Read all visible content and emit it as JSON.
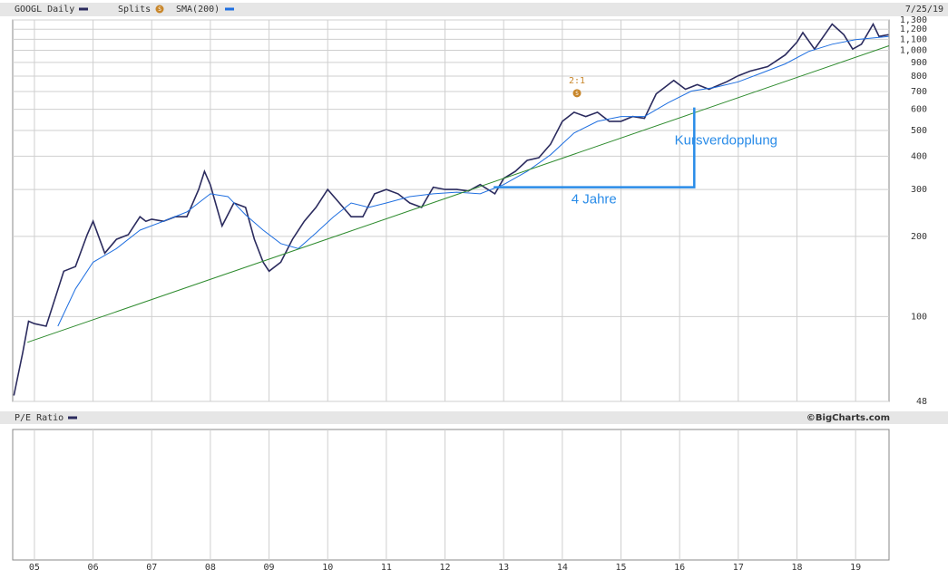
{
  "chart_data": [
    {
      "type": "line",
      "log_scale": true,
      "grid": true,
      "date": "7/25/19",
      "credit": "©BigCharts.com",
      "splits_label": "Splits",
      "split_icon": "S",
      "xlim": [
        2004.63,
        2019.57
      ],
      "xticks": [
        {
          "value": 2005,
          "label": "05"
        },
        {
          "value": 2006,
          "label": "06"
        },
        {
          "value": 2007,
          "label": "07"
        },
        {
          "value": 2008,
          "label": "08"
        },
        {
          "value": 2009,
          "label": "09"
        },
        {
          "value": 2010,
          "label": "10"
        },
        {
          "value": 2011,
          "label": "11"
        },
        {
          "value": 2012,
          "label": "12"
        },
        {
          "value": 2013,
          "label": "13"
        },
        {
          "value": 2014,
          "label": "14"
        },
        {
          "value": 2015,
          "label": "15"
        },
        {
          "value": 2016,
          "label": "16"
        },
        {
          "value": 2017,
          "label": "17"
        },
        {
          "value": 2018,
          "label": "18"
        },
        {
          "value": 2019,
          "label": "19"
        }
      ],
      "ylim": [
        48,
        1300
      ],
      "yticks": [
        {
          "value": 1300,
          "label": "1,300"
        },
        {
          "value": 1200,
          "label": "1,200"
        },
        {
          "value": 1100,
          "label": "1,100"
        },
        {
          "value": 1000,
          "label": "1,000"
        },
        900,
        800,
        700,
        600,
        500,
        400,
        300,
        200,
        100,
        48
      ],
      "series": [
        {
          "name": "GOOGL Daily",
          "color": "#2b2b5e",
          "x": [
            2004.65,
            2004.8,
            2004.9,
            2005.0,
            2005.2,
            2005.5,
            2005.7,
            2005.9,
            2006.0,
            2006.2,
            2006.4,
            2006.6,
            2006.8,
            2006.9,
            2007.0,
            2007.2,
            2007.4,
            2007.6,
            2007.8,
            2007.9,
            2008.0,
            2008.2,
            2008.4,
            2008.6,
            2008.75,
            2008.9,
            2009.0,
            2009.2,
            2009.4,
            2009.6,
            2009.8,
            2010.0,
            2010.2,
            2010.4,
            2010.6,
            2010.8,
            2011.0,
            2011.2,
            2011.4,
            2011.6,
            2011.8,
            2012.0,
            2012.2,
            2012.4,
            2012.6,
            2012.85,
            2013.0,
            2013.2,
            2013.4,
            2013.6,
            2013.8,
            2014.0,
            2014.2,
            2014.4,
            2014.6,
            2014.8,
            2015.0,
            2015.2,
            2015.4,
            2015.6,
            2015.9,
            2016.1,
            2016.3,
            2016.5,
            2016.8,
            2017.0,
            2017.2,
            2017.5,
            2017.8,
            2018.0,
            2018.1,
            2018.3,
            2018.6,
            2018.8,
            2018.95,
            2019.1,
            2019.3,
            2019.4,
            2019.56
          ],
          "values": [
            50.5,
            73,
            96,
            94,
            92,
            148,
            154,
            203,
            228,
            173,
            195,
            203,
            237,
            228,
            232,
            228,
            237,
            237,
            300,
            351,
            312,
            219,
            267,
            257,
            195,
            160,
            148,
            160,
            195,
            228,
            257,
            300,
            267,
            237,
            237,
            289,
            300,
            289,
            267,
            257,
            306,
            300,
            300,
            296,
            313,
            289,
            330,
            351,
            386,
            395,
            444,
            541,
            585,
            564,
            585,
            541,
            541,
            564,
            555,
            686,
            770,
            714,
            743,
            714,
            761,
            802,
            835,
            868,
            961,
            1073,
            1165,
            1010,
            1254,
            1144,
            1010,
            1054,
            1254,
            1127,
            1144
          ]
        },
        {
          "name": "SMA(200)",
          "color": "#1f6fe0",
          "x": [
            2005.4,
            2005.7,
            2006.0,
            2006.4,
            2006.8,
            2007.2,
            2007.6,
            2008.0,
            2008.3,
            2008.6,
            2008.9,
            2009.2,
            2009.5,
            2009.8,
            2010.1,
            2010.4,
            2010.7,
            2011.0,
            2011.4,
            2011.8,
            2012.2,
            2012.6,
            2013.0,
            2013.4,
            2013.8,
            2014.2,
            2014.6,
            2015.0,
            2015.4,
            2015.8,
            2016.2,
            2016.6,
            2017.0,
            2017.4,
            2017.8,
            2018.2,
            2018.6,
            2019.0,
            2019.56
          ],
          "values": [
            92,
            127,
            160,
            180,
            211,
            228,
            247,
            289,
            282,
            241,
            211,
            188,
            180,
            206,
            237,
            267,
            257,
            267,
            282,
            289,
            293,
            289,
            313,
            351,
            405,
            489,
            541,
            564,
            564,
            634,
            703,
            725,
            761,
            822,
            889,
            990,
            1054,
            1096,
            1127
          ]
        },
        {
          "color": "#2e8b2e",
          "x": [
            2004.88,
            2019.57
          ],
          "values": [
            80,
            1040
          ]
        }
      ],
      "splits": [
        {
          "x": 2014.25,
          "value": 690,
          "label": "2:1"
        }
      ],
      "bracket": {
        "color": "#2a8ce8",
        "x": [
          2012.83,
          2016.25,
          2016.25
        ],
        "values": [
          306,
          306,
          610
        ]
      },
      "annotations": [
        {
          "text": "4 Jahre"
        },
        {
          "text": "Kursverdopplung"
        }
      ]
    },
    {
      "type": "line",
      "title": "P/E Ratio",
      "series": []
    }
  ]
}
